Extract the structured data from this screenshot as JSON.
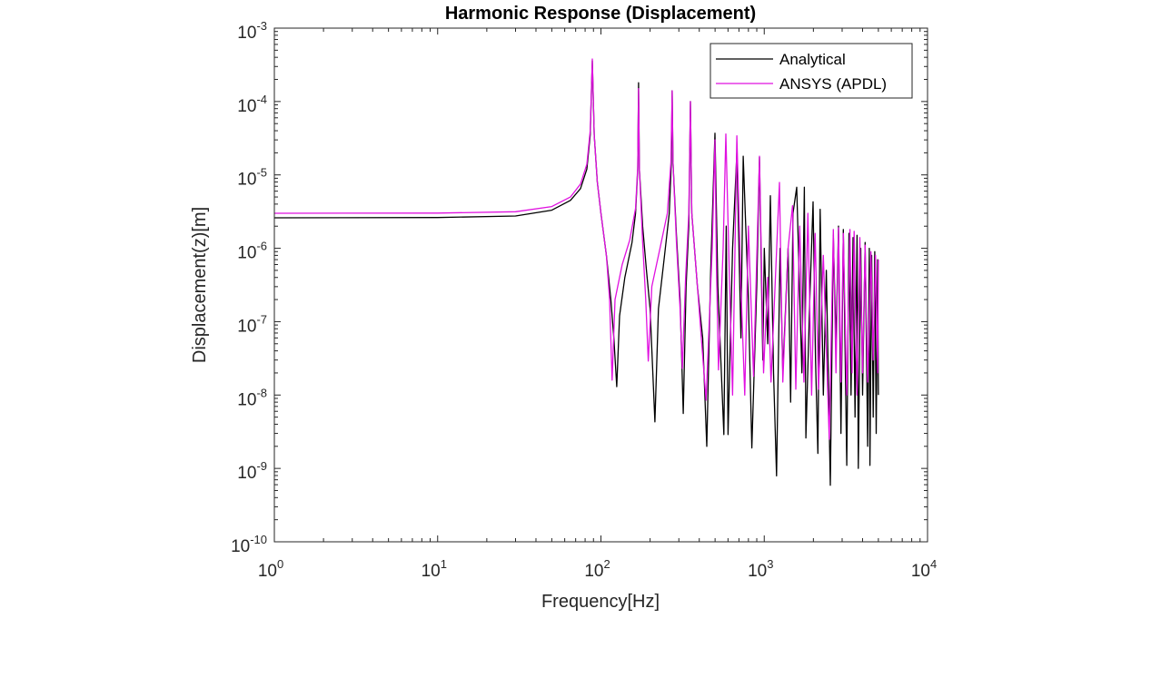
{
  "chart_data": {
    "type": "line",
    "title": "Harmonic Response (Displacement)",
    "xlabel": "Frequency[Hz]",
    "ylabel": "Displacement(z)[m]",
    "xscale": "log",
    "yscale": "log",
    "xlim": [
      1,
      10000
    ],
    "ylim": [
      1e-10,
      0.001
    ],
    "grid": false,
    "legend_position": "top-right",
    "x_ticks": [
      {
        "base": "10",
        "exp": "0",
        "value": 1
      },
      {
        "base": "10",
        "exp": "1",
        "value": 10
      },
      {
        "base": "10",
        "exp": "2",
        "value": 100
      },
      {
        "base": "10",
        "exp": "3",
        "value": 1000
      },
      {
        "base": "10",
        "exp": "4",
        "value": 10000
      }
    ],
    "y_ticks": [
      {
        "base": "10",
        "exp": "-3",
        "value": 0.001
      },
      {
        "base": "10",
        "exp": "-4",
        "value": 0.0001
      },
      {
        "base": "10",
        "exp": "-5",
        "value": 1e-05
      },
      {
        "base": "10",
        "exp": "-6",
        "value": 1e-06
      },
      {
        "base": "10",
        "exp": "-7",
        "value": 1e-07
      },
      {
        "base": "10",
        "exp": "-8",
        "value": 1e-08
      },
      {
        "base": "10",
        "exp": "-9",
        "value": 1e-09
      },
      {
        "base": "10",
        "exp": "-10",
        "value": 1e-10
      }
    ],
    "series": [
      {
        "name": "Analytical",
        "color": "#000000",
        "points": [
          [
            1,
            2.6e-06
          ],
          [
            10,
            2.62e-06
          ],
          [
            30,
            2.75e-06
          ],
          [
            50,
            3.3e-06
          ],
          [
            65,
            4.5e-06
          ],
          [
            75,
            6.5e-06
          ],
          [
            82,
            1.2e-05
          ],
          [
            86,
            3.5e-05
          ],
          [
            88.5,
            0.00036
          ],
          [
            91,
            3.5e-05
          ],
          [
            95,
            8e-06
          ],
          [
            100,
            3e-06
          ],
          [
            108,
            8e-07
          ],
          [
            115,
            2e-07
          ],
          [
            120,
            6e-08
          ],
          [
            125,
            1.3e-08
          ],
          [
            130,
            1.2e-07
          ],
          [
            140,
            4e-07
          ],
          [
            155,
            1.2e-06
          ],
          [
            163,
            3e-06
          ],
          [
            168,
            1.2e-05
          ],
          [
            170,
            0.00018
          ],
          [
            172,
            1.2e-05
          ],
          [
            180,
            2e-06
          ],
          [
            190,
            5e-07
          ],
          [
            200,
            1.5e-07
          ],
          [
            214,
            4.3e-09
          ],
          [
            225,
            1.5e-07
          ],
          [
            245,
            8e-07
          ],
          [
            262,
            3e-06
          ],
          [
            270,
            1.5e-05
          ],
          [
            273,
            0.00014
          ],
          [
            276,
            1.5e-05
          ],
          [
            290,
            1.5e-06
          ],
          [
            305,
            2e-07
          ],
          [
            319,
            5.6e-09
          ],
          [
            332,
            3e-07
          ],
          [
            345,
            2e-06
          ],
          [
            353,
            0.0001
          ],
          [
            360,
            3e-06
          ],
          [
            390,
            3e-07
          ],
          [
            420,
            6e-08
          ],
          [
            445,
            2e-09
          ],
          [
            470,
            5e-07
          ],
          [
            499,
            3.7e-05
          ],
          [
            520,
            3e-07
          ],
          [
            566,
            2.9e-09
          ],
          [
            585,
            2e-06
          ],
          [
            600,
            2.9e-09
          ],
          [
            640,
            1e-06
          ],
          [
            680,
            2e-05
          ],
          [
            720,
            6e-08
          ],
          [
            743,
            1.8e-05
          ],
          [
            800,
            2e-07
          ],
          [
            840,
            1.9e-09
          ],
          [
            900,
            3e-07
          ],
          [
            935,
            1.75e-05
          ],
          [
            980,
            3e-08
          ],
          [
            1000,
            1e-06
          ],
          [
            1050,
            5e-08
          ],
          [
            1091,
            5.2e-06
          ],
          [
            1140,
            2e-08
          ],
          [
            1190,
            7.9e-10
          ],
          [
            1250,
            1e-06
          ],
          [
            1300,
            2e-08
          ],
          [
            1400,
            1e-06
          ],
          [
            1450,
            8e-09
          ],
          [
            1500,
            3e-06
          ],
          [
            1581,
            6.8e-06
          ],
          [
            1700,
            2e-08
          ],
          [
            1760,
            6.8e-06
          ],
          [
            1800,
            2.6e-09
          ],
          [
            1900,
            2e-07
          ],
          [
            1990,
            4.3e-06
          ],
          [
            2060,
            3e-08
          ],
          [
            2130,
            1.6e-09
          ],
          [
            2200,
            3.4e-06
          ],
          [
            2300,
            1e-08
          ],
          [
            2400,
            5e-07
          ],
          [
            2540,
            5.9e-10
          ],
          [
            2650,
            1.5e-06
          ],
          [
            2750,
            5e-08
          ],
          [
            2850,
            2e-06
          ],
          [
            2950,
            3e-09
          ],
          [
            3050,
            1.8e-06
          ],
          [
            3200,
            1.1e-09
          ],
          [
            3300,
            1.6e-06
          ],
          [
            3400,
            1e-08
          ],
          [
            3500,
            1.4e-06
          ],
          [
            3600,
            5e-09
          ],
          [
            3700,
            1.5e-06
          ],
          [
            3770,
            1e-09
          ],
          [
            3900,
            1e-06
          ],
          [
            4000,
            1e-08
          ],
          [
            4150,
            1.2e-06
          ],
          [
            4300,
            2e-09
          ],
          [
            4400,
            1e-06
          ],
          [
            4440,
            1.1e-09
          ],
          [
            4550,
            8e-07
          ],
          [
            4650,
            5e-09
          ],
          [
            4750,
            9e-07
          ],
          [
            4850,
            3e-09
          ],
          [
            4950,
            7e-07
          ],
          [
            5000,
            1e-08
          ]
        ]
      },
      {
        "name": "ANSYS (APDL)",
        "color": "#e010e0",
        "points": [
          [
            1,
            3e-06
          ],
          [
            10,
            3.02e-06
          ],
          [
            30,
            3.15e-06
          ],
          [
            50,
            3.7e-06
          ],
          [
            65,
            5e-06
          ],
          [
            75,
            7.5e-06
          ],
          [
            82,
            1.4e-05
          ],
          [
            86,
            4e-05
          ],
          [
            88.5,
            0.00038
          ],
          [
            91,
            3.5e-05
          ],
          [
            95,
            8e-06
          ],
          [
            100,
            3e-06
          ],
          [
            108,
            8e-07
          ],
          [
            113,
            2e-07
          ],
          [
            117,
            1.6e-08
          ],
          [
            122,
            2e-07
          ],
          [
            135,
            6e-07
          ],
          [
            150,
            1.3e-06
          ],
          [
            163,
            3.5e-06
          ],
          [
            168,
            1.3e-05
          ],
          [
            170,
            0.00015
          ],
          [
            172,
            1.2e-05
          ],
          [
            180,
            1.2e-06
          ],
          [
            188,
            2e-07
          ],
          [
            195,
            2.9e-08
          ],
          [
            205,
            3e-07
          ],
          [
            230,
            1e-06
          ],
          [
            255,
            3e-06
          ],
          [
            268,
            1.5e-05
          ],
          [
            273,
            0.00014
          ],
          [
            276,
            1.5e-05
          ],
          [
            290,
            1.2e-06
          ],
          [
            305,
            1.5e-07
          ],
          [
            315,
            2.3e-08
          ],
          [
            330,
            4e-07
          ],
          [
            345,
            3e-06
          ],
          [
            353,
            0.0001
          ],
          [
            360,
            3e-06
          ],
          [
            390,
            3e-07
          ],
          [
            440,
            8.5e-09
          ],
          [
            480,
            1e-06
          ],
          [
            499,
            3e-05
          ],
          [
            510,
            5e-07
          ],
          [
            525,
            2.2e-08
          ],
          [
            560,
            1e-06
          ],
          [
            582,
            3.6e-05
          ],
          [
            610,
            5e-07
          ],
          [
            640,
            1e-08
          ],
          [
            680,
            3.4e-05
          ],
          [
            720,
            3e-07
          ],
          [
            760,
            1e-08
          ],
          [
            800,
            2e-06
          ],
          [
            860,
            1.8e-08
          ],
          [
            935,
            1.8e-05
          ],
          [
            990,
            2e-08
          ],
          [
            1050,
            4e-07
          ],
          [
            1100,
            1.5e-08
          ],
          [
            1240,
            7.9e-06
          ],
          [
            1300,
            1.5e-08
          ],
          [
            1400,
            1e-06
          ],
          [
            1490,
            3.8e-06
          ],
          [
            1560,
            1.2e-08
          ],
          [
            1650,
            2e-06
          ],
          [
            1750,
            1.5e-08
          ],
          [
            1850,
            3e-06
          ],
          [
            1950,
            1e-08
          ],
          [
            2050,
            1.6e-06
          ],
          [
            2150,
            1.2e-08
          ],
          [
            2300,
            8e-07
          ],
          [
            2500,
            2.5e-09
          ],
          [
            2650,
            1.8e-06
          ],
          [
            2750,
            2e-08
          ],
          [
            2850,
            1.9e-06
          ],
          [
            2950,
            1.5e-08
          ],
          [
            3050,
            1.6e-06
          ],
          [
            3200,
            1e-08
          ],
          [
            3350,
            1.8e-06
          ],
          [
            3450,
            2e-08
          ],
          [
            3550,
            1.7e-06
          ],
          [
            3700,
            1e-08
          ],
          [
            3850,
            1.4e-06
          ],
          [
            4000,
            2e-08
          ],
          [
            4150,
            1.1e-06
          ],
          [
            4300,
            1.5e-08
          ],
          [
            4500,
            9e-07
          ],
          [
            4650,
            3e-08
          ],
          [
            4800,
            8e-07
          ],
          [
            4950,
            2e-08
          ],
          [
            5000,
            7e-07
          ]
        ]
      }
    ]
  }
}
